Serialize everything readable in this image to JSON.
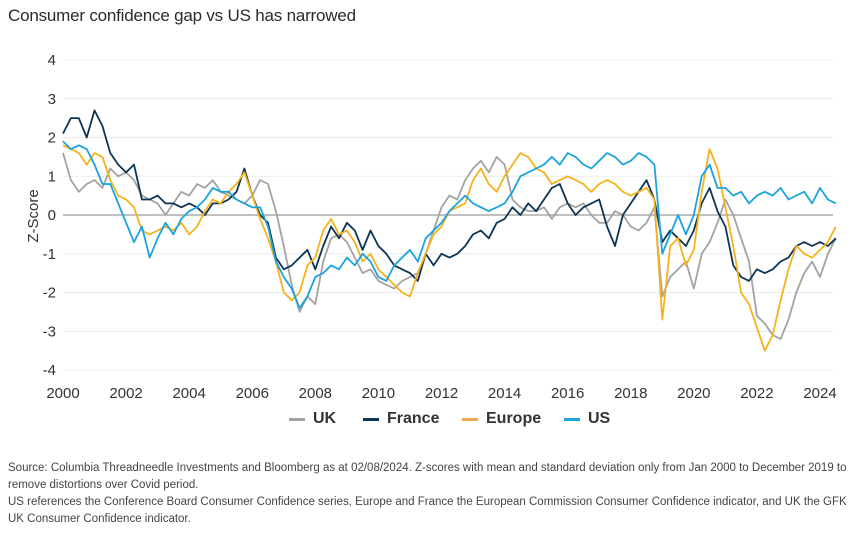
{
  "title": "Consumer confidence gap vs US has narrowed",
  "footnote": {
    "line1": "Source: Columbia Threadneedle Investments and Bloomberg as at 02/08/2024. Z-scores with mean and standard deviation only from Jan 2000 to December 2019 to remove distortions over Covid period.",
    "line2": "US references the Conference Board Consumer Confidence series, Europe and France the European Commission Consumer Confidence indicator, and UK the GFK UK Consumer Confidence indicator."
  },
  "chart_data": {
    "type": "line",
    "title": "Consumer confidence gap vs US has narrowed",
    "xlabel": "",
    "ylabel": "Z-Score",
    "xlim": [
      2000,
      2024.6
    ],
    "ylim": [
      -4,
      4
    ],
    "x_ticks": [
      "2000",
      "2002",
      "2004",
      "2006",
      "2008",
      "2010",
      "2012",
      "2014",
      "2016",
      "2018",
      "2020",
      "2022",
      "2024"
    ],
    "y_ticks": [
      "4",
      "3",
      "2",
      "1",
      "0",
      "-1",
      "-2",
      "-3",
      "-4"
    ],
    "grid": true,
    "legend": "bottom-center",
    "x_step_years": 0.25,
    "x_start": 2000,
    "series": [
      {
        "name": "UK",
        "color": "#a3a3a3",
        "values": [
          1.6,
          0.9,
          0.6,
          0.8,
          0.9,
          0.7,
          1.2,
          1.0,
          1.1,
          0.9,
          0.5,
          0.4,
          0.3,
          0.0,
          0.3,
          0.6,
          0.5,
          0.8,
          0.7,
          0.9,
          0.6,
          0.5,
          0.4,
          0.3,
          0.5,
          0.9,
          0.8,
          0.1,
          -0.8,
          -1.8,
          -2.5,
          -2.1,
          -2.3,
          -1.2,
          -0.6,
          -0.5,
          -0.7,
          -1.1,
          -1.5,
          -1.4,
          -1.7,
          -1.8,
          -1.9,
          -1.7,
          -1.6,
          -1.5,
          -1.0,
          -0.4,
          0.2,
          0.5,
          0.4,
          0.9,
          1.2,
          1.4,
          1.1,
          1.5,
          1.3,
          0.4,
          0.2,
          0.1,
          0.1,
          0.2,
          -0.1,
          0.2,
          0.3,
          0.2,
          0.3,
          0.0,
          -0.2,
          -0.2,
          0.1,
          0.0,
          -0.3,
          -0.4,
          -0.2,
          0.2,
          -2.1,
          -1.6,
          -1.4,
          -1.2,
          -1.9,
          -1.0,
          -0.7,
          -0.2,
          0.4,
          0.0,
          -0.6,
          -1.2,
          -2.6,
          -2.8,
          -3.1,
          -3.2,
          -2.7,
          -2.0,
          -1.5,
          -1.2,
          -1.6,
          -1.0,
          -0.6
        ]
      },
      {
        "name": "France",
        "color": "#0d3554",
        "values": [
          2.1,
          2.5,
          2.5,
          2.0,
          2.7,
          2.3,
          1.6,
          1.3,
          1.1,
          1.3,
          0.4,
          0.4,
          0.5,
          0.3,
          0.3,
          0.2,
          0.3,
          0.2,
          0.0,
          0.3,
          0.3,
          0.4,
          0.6,
          1.2,
          0.5,
          0.0,
          -0.2,
          -1.1,
          -1.4,
          -1.3,
          -1.1,
          -0.9,
          -1.4,
          -0.8,
          -0.3,
          -0.6,
          -0.2,
          -0.4,
          -0.9,
          -0.4,
          -0.8,
          -1.0,
          -1.3,
          -1.4,
          -1.5,
          -1.7,
          -1.0,
          -1.3,
          -1.0,
          -1.1,
          -1.0,
          -0.8,
          -0.5,
          -0.4,
          -0.6,
          -0.2,
          -0.1,
          0.2,
          0.0,
          0.3,
          0.1,
          0.4,
          0.7,
          0.8,
          0.3,
          0.0,
          0.2,
          0.3,
          0.4,
          -0.3,
          -0.8,
          0.0,
          0.3,
          0.6,
          0.9,
          0.4,
          -0.7,
          -0.4,
          -0.6,
          -0.8,
          -0.4,
          0.3,
          0.7,
          0.1,
          -0.3,
          -1.3,
          -1.6,
          -1.7,
          -1.4,
          -1.5,
          -1.4,
          -1.2,
          -1.1,
          -0.8,
          -0.7,
          -0.8,
          -0.7,
          -0.8,
          -0.6
        ]
      },
      {
        "name": "Europe",
        "color": "#f5b21b",
        "values": [
          1.8,
          1.7,
          1.6,
          1.3,
          1.6,
          1.5,
          0.9,
          0.5,
          0.4,
          0.2,
          -0.4,
          -0.5,
          -0.4,
          -0.3,
          -0.4,
          -0.2,
          -0.5,
          -0.3,
          0.1,
          0.4,
          0.3,
          0.6,
          0.8,
          1.1,
          0.5,
          -0.1,
          -0.6,
          -1.2,
          -2.0,
          -2.2,
          -2.0,
          -1.3,
          -1.1,
          -0.4,
          -0.1,
          -0.5,
          -0.4,
          -0.7,
          -1.2,
          -1.0,
          -1.4,
          -1.6,
          -1.8,
          -2.0,
          -2.1,
          -1.5,
          -1.0,
          -0.5,
          -0.3,
          0.1,
          0.2,
          0.3,
          0.9,
          1.2,
          0.8,
          0.6,
          1.0,
          1.3,
          1.6,
          1.5,
          1.2,
          1.1,
          0.8,
          0.9,
          1.0,
          0.9,
          0.8,
          0.6,
          0.8,
          0.9,
          0.8,
          0.6,
          0.5,
          0.6,
          0.7,
          0.4,
          -2.7,
          -0.8,
          -0.6,
          -1.3,
          -0.9,
          0.6,
          1.7,
          1.2,
          0.2,
          -0.8,
          -2.0,
          -2.3,
          -2.9,
          -3.5,
          -3.1,
          -2.2,
          -1.4,
          -0.8,
          -1.0,
          -1.1,
          -0.9,
          -0.7,
          -0.3
        ]
      },
      {
        "name": "US",
        "color": "#1aa3df",
        "values": [
          1.9,
          1.7,
          1.8,
          1.7,
          1.3,
          0.8,
          0.8,
          0.3,
          -0.2,
          -0.7,
          -0.3,
          -1.1,
          -0.6,
          -0.2,
          -0.5,
          -0.1,
          0.1,
          0.2,
          0.4,
          0.7,
          0.6,
          0.6,
          0.4,
          0.3,
          0.2,
          0.2,
          -0.3,
          -1.2,
          -1.6,
          -1.9,
          -2.4,
          -2.1,
          -1.6,
          -1.5,
          -1.3,
          -1.4,
          -1.1,
          -1.3,
          -1.0,
          -1.2,
          -1.6,
          -1.7,
          -1.3,
          -1.1,
          -0.9,
          -1.2,
          -0.6,
          -0.4,
          -0.2,
          0.1,
          0.3,
          0.5,
          0.3,
          0.2,
          0.1,
          0.2,
          0.3,
          0.6,
          1.0,
          1.1,
          1.2,
          1.3,
          1.5,
          1.3,
          1.6,
          1.5,
          1.3,
          1.2,
          1.4,
          1.6,
          1.5,
          1.3,
          1.4,
          1.6,
          1.5,
          1.3,
          -1.0,
          -0.5,
          0.0,
          -0.5,
          0.0,
          1.0,
          1.3,
          0.7,
          0.7,
          0.5,
          0.6,
          0.3,
          0.5,
          0.6,
          0.5,
          0.7,
          0.4,
          0.5,
          0.6,
          0.3,
          0.7,
          0.4,
          0.3
        ]
      }
    ]
  }
}
